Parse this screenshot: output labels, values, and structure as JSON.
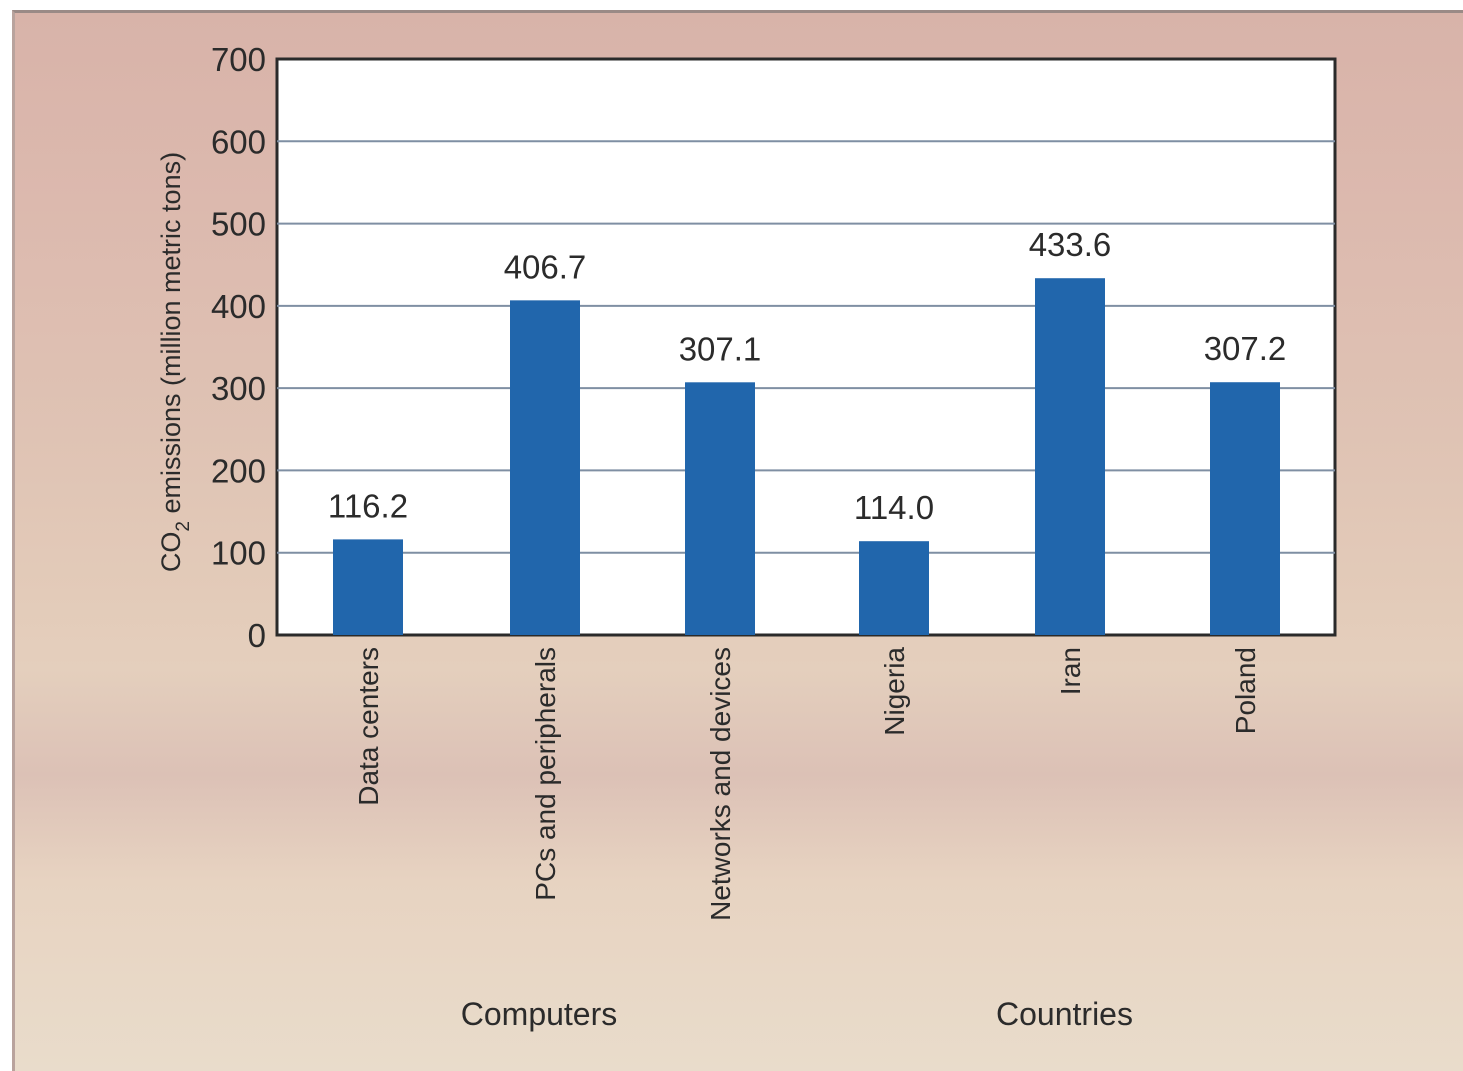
{
  "chart_data": {
    "type": "bar",
    "ylabel": "CO2 emissions (million metric tons)",
    "ylabel_parts": {
      "pre": "CO",
      "sub": "2",
      "post": " emissions (million metric tons)"
    },
    "ylim": [
      0,
      700
    ],
    "yticks": [
      0,
      100,
      200,
      300,
      400,
      500,
      600,
      700
    ],
    "grid": true,
    "categories": [
      "Data centers",
      "PCs and peripherals",
      "Networks and devices",
      "Nigeria",
      "Iran",
      "Poland"
    ],
    "values": [
      116.2,
      406.7,
      307.1,
      114.0,
      433.6,
      307.2
    ],
    "data_labels": [
      "116.2",
      "406.7",
      "307.1",
      "114.0",
      "433.6",
      "307.2"
    ],
    "groups": [
      {
        "label": "Computers",
        "categories": [
          "Data centers",
          "PCs and peripherals",
          "Networks and devices"
        ]
      },
      {
        "label": "Countries",
        "categories": [
          "Nigeria",
          "Iran",
          "Poland"
        ]
      }
    ],
    "colors": {
      "bar": "#2166ac",
      "grid": "#7f8fa3",
      "frame": "#2a2a2a",
      "plot_bg": "#ffffff"
    }
  }
}
